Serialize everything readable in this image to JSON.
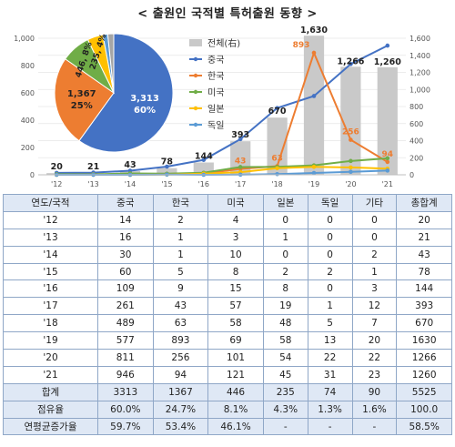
{
  "title": "< 출원인 국적별 특허출원 동향 >",
  "chart_data": [
    {
      "type": "pie",
      "slices": [
        {
          "name": "중국",
          "value": 3313,
          "pct": "60%",
          "label": "3,313\n60%",
          "color": "#4472c4"
        },
        {
          "name": "한국",
          "value": 1367,
          "pct": "25%",
          "label": "1,367\n25%",
          "color": "#ed7d31"
        },
        {
          "name": "미국",
          "value": 446,
          "pct": "8%",
          "label": "446, 8%",
          "color": "#70ad47"
        },
        {
          "name": "일본",
          "value": 235,
          "pct": "4%",
          "label": "235, 4%",
          "color": "#ffc000"
        },
        {
          "name": "독일",
          "value": 74,
          "pct": "1%",
          "label": "",
          "color": "#5b9bd5"
        },
        {
          "name": "기타",
          "value": 90,
          "pct": "2%",
          "label": "",
          "color": "#a5a5a5"
        }
      ]
    },
    {
      "type": "bar+line",
      "categories": [
        "'12",
        "'13",
        "'14",
        "'15",
        "'16",
        "'17",
        "'18",
        "'19",
        "'20",
        "'21"
      ],
      "left_axis": {
        "min": 0,
        "max": 1000,
        "ticks": [
          "0",
          "200",
          "400",
          "600",
          "800",
          "1,000"
        ]
      },
      "right_axis": {
        "min": 0,
        "max": 1600,
        "ticks": [
          "0",
          "200",
          "400",
          "600",
          "800",
          "1,000",
          "1,200",
          "1,400",
          "1,600"
        ]
      },
      "bar_series": {
        "name": "전체(右)",
        "axis": "right",
        "color": "#c9c9c9",
        "values": [
          20,
          21,
          43,
          78,
          144,
          393,
          670,
          1630,
          1266,
          1260
        ],
        "labels": [
          "20",
          "21",
          "43",
          "78",
          "144",
          "393",
          "670",
          "1,630",
          "1,266",
          "1,260"
        ]
      },
      "line_series": [
        {
          "name": "중국",
          "color": "#4472c4",
          "values": [
            14,
            16,
            30,
            60,
            109,
            261,
            489,
            577,
            811,
            946
          ]
        },
        {
          "name": "한국",
          "color": "#ed7d31",
          "values": [
            2,
            1,
            1,
            5,
            9,
            43,
            63,
            893,
            256,
            94
          ],
          "labels": {
            "5": "43",
            "6": "63",
            "7": "893",
            "8": "256",
            "9": "94"
          }
        },
        {
          "name": "미국",
          "color": "#70ad47",
          "values": [
            4,
            3,
            10,
            8,
            15,
            57,
            58,
            69,
            101,
            121
          ]
        },
        {
          "name": "일본",
          "color": "#ffc000",
          "values": [
            0,
            1,
            0,
            2,
            8,
            19,
            48,
            58,
            54,
            45
          ]
        },
        {
          "name": "독일",
          "color": "#5b9bd5",
          "values": [
            0,
            0,
            0,
            2,
            0,
            1,
            5,
            13,
            22,
            31
          ]
        }
      ]
    }
  ],
  "table": {
    "headers": [
      "연도/국적",
      "중국",
      "한국",
      "미국",
      "일본",
      "독일",
      "기타",
      "총합계"
    ],
    "rows": [
      [
        "'12",
        "14",
        "2",
        "4",
        "0",
        "0",
        "0",
        "20"
      ],
      [
        "'13",
        "16",
        "1",
        "3",
        "1",
        "0",
        "0",
        "21"
      ],
      [
        "'14",
        "30",
        "1",
        "10",
        "0",
        "0",
        "2",
        "43"
      ],
      [
        "'15",
        "60",
        "5",
        "8",
        "2",
        "2",
        "1",
        "78"
      ],
      [
        "'16",
        "109",
        "9",
        "15",
        "8",
        "0",
        "3",
        "144"
      ],
      [
        "'17",
        "261",
        "43",
        "57",
        "19",
        "1",
        "12",
        "393"
      ],
      [
        "'18",
        "489",
        "63",
        "58",
        "48",
        "5",
        "7",
        "670"
      ],
      [
        "'19",
        "577",
        "893",
        "69",
        "58",
        "13",
        "20",
        "1630"
      ],
      [
        "'20",
        "811",
        "256",
        "101",
        "54",
        "22",
        "22",
        "1266"
      ],
      [
        "'21",
        "946",
        "94",
        "121",
        "45",
        "31",
        "23",
        "1260"
      ]
    ],
    "summary": [
      [
        "합계",
        "3313",
        "1367",
        "446",
        "235",
        "74",
        "90",
        "5525"
      ],
      [
        "점유율",
        "60.0%",
        "24.7%",
        "8.1%",
        "4.3%",
        "1.3%",
        "1.6%",
        "100.0"
      ],
      [
        "연평균증가율",
        "59.7%",
        "53.4%",
        "46.1%",
        "-",
        "-",
        "-",
        "58.5%"
      ]
    ]
  }
}
